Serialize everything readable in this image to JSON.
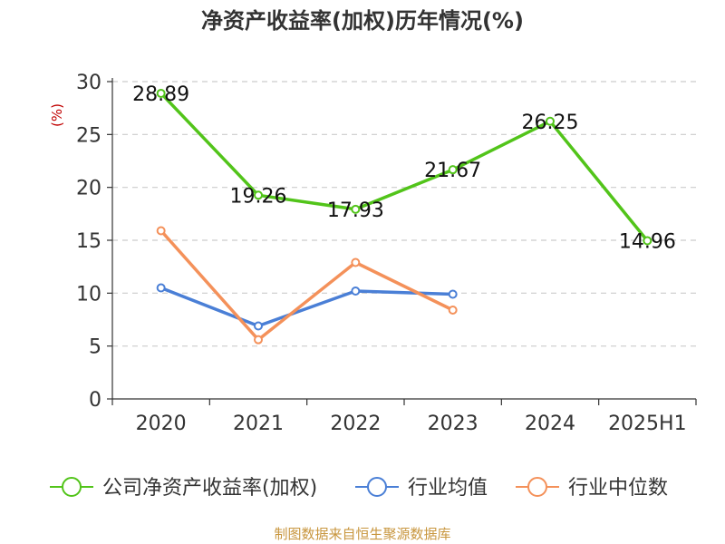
{
  "chart_data": {
    "type": "line",
    "title": "净资产收益率(加权)历年情况(%)",
    "ylabel": "(%)",
    "ylim": [
      0,
      30
    ],
    "yticks": [
      0,
      5,
      10,
      15,
      20,
      25,
      30
    ],
    "grid": true,
    "legend_position": "bottom",
    "categories": [
      "2020",
      "2021",
      "2022",
      "2023",
      "2024",
      "2025H1"
    ],
    "series": [
      {
        "name": "公司净资产收益率(加权)",
        "color": "#52c41a",
        "values": [
          28.89,
          19.26,
          17.93,
          21.67,
          26.25,
          14.96
        ],
        "labels": [
          "28.89",
          "19.26",
          "17.93",
          "21.67",
          "26.25",
          "14.96"
        ]
      },
      {
        "name": "行业均值",
        "color": "#4a7fd6",
        "values": [
          10.5,
          6.9,
          10.2,
          9.9,
          null,
          null
        ]
      },
      {
        "name": "行业中位数",
        "color": "#f4915a",
        "values": [
          15.9,
          5.6,
          12.9,
          8.4,
          null,
          null
        ]
      }
    ]
  },
  "source_note": "制图数据来自恒生聚源数据库"
}
